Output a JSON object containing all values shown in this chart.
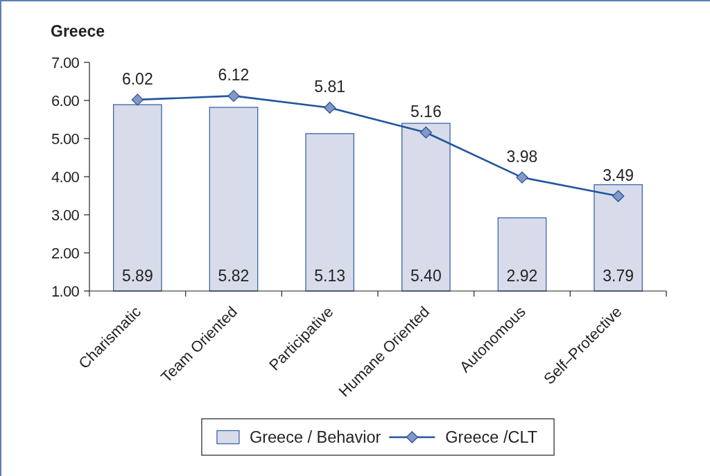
{
  "chart_data": {
    "type": "bar",
    "title": "Greece",
    "categories": [
      "Charismatic",
      "Team Oriented",
      "Participative",
      "Humane Oriented",
      "Autonomous",
      "Self–Protective"
    ],
    "series": [
      {
        "name": "Greece / Behavior",
        "color": "#d8dcea",
        "values": [
          5.89,
          5.82,
          5.13,
          5.4,
          2.92,
          3.79
        ],
        "value_labels": [
          "5.89",
          "5.82",
          "5.13",
          "5.40",
          "2.92",
          "3.79"
        ]
      },
      {
        "name": "Greece /CLT",
        "type": "line",
        "color": "#22569d",
        "marker": "diamond",
        "line_style": "solid",
        "values": [
          6.02,
          6.12,
          5.81,
          5.16,
          3.98,
          3.49
        ],
        "value_labels": [
          "6.02",
          "6.12",
          "5.81",
          "5.16",
          "3.98",
          "3.49"
        ]
      }
    ],
    "ylim": [
      1,
      7
    ],
    "yticks": [
      {
        "value": 1,
        "label": "1.00"
      },
      {
        "value": 2,
        "label": "2.00"
      },
      {
        "value": 3,
        "label": "3.00"
      },
      {
        "value": 4,
        "label": "4.00"
      },
      {
        "value": 5,
        "label": "5.00"
      },
      {
        "value": 6,
        "label": "6.00"
      },
      {
        "value": 7,
        "label": "7.00"
      }
    ],
    "grid": false,
    "legend": "bottom"
  }
}
